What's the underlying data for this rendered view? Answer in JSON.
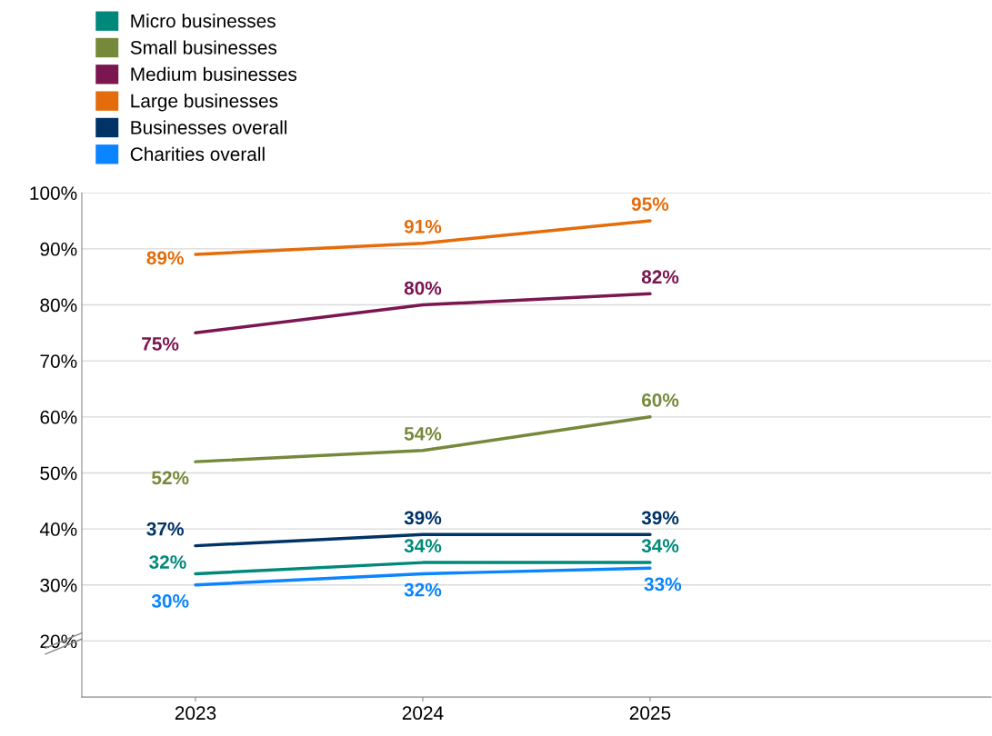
{
  "chart_data": {
    "type": "line",
    "categories": [
      "2023",
      "2024",
      "2025"
    ],
    "series": [
      {
        "name": "Micro businesses",
        "color": "#00897b",
        "values": [
          32,
          34,
          34
        ],
        "value_labels": [
          "32%",
          "34%",
          "34%"
        ]
      },
      {
        "name": "Small businesses",
        "color": "#76883a",
        "values": [
          52,
          54,
          60
        ],
        "value_labels": [
          "52%",
          "54%",
          "60%"
        ]
      },
      {
        "name": "Medium businesses",
        "color": "#7b1650",
        "values": [
          75,
          80,
          82
        ],
        "value_labels": [
          "75%",
          "80%",
          "82%"
        ]
      },
      {
        "name": "Large businesses",
        "color": "#e46c0a",
        "values": [
          89,
          91,
          95
        ],
        "value_labels": [
          "89%",
          "91%",
          "95%"
        ]
      },
      {
        "name": "Businesses overall",
        "color": "#003366",
        "values": [
          37,
          39,
          39
        ],
        "value_labels": [
          "37%",
          "39%",
          "39%"
        ]
      },
      {
        "name": "Charities overall",
        "color": "#0a84ff",
        "values": [
          30,
          32,
          33
        ],
        "value_labels": [
          "30%",
          "32%",
          "33%"
        ]
      }
    ],
    "ylim": [
      10,
      100
    ],
    "yticks": [
      {
        "value": 20,
        "label": "20%"
      },
      {
        "value": 30,
        "label": "30%"
      },
      {
        "value": 40,
        "label": "40%"
      },
      {
        "value": 50,
        "label": "50%"
      },
      {
        "value": 60,
        "label": "60%"
      },
      {
        "value": 70,
        "label": "70%"
      },
      {
        "value": 80,
        "label": "80%"
      },
      {
        "value": 90,
        "label": "90%"
      },
      {
        "value": 100,
        "label": "100%"
      }
    ],
    "grid": "y",
    "legend": "top left",
    "marker": "none",
    "line_style": "solid"
  }
}
